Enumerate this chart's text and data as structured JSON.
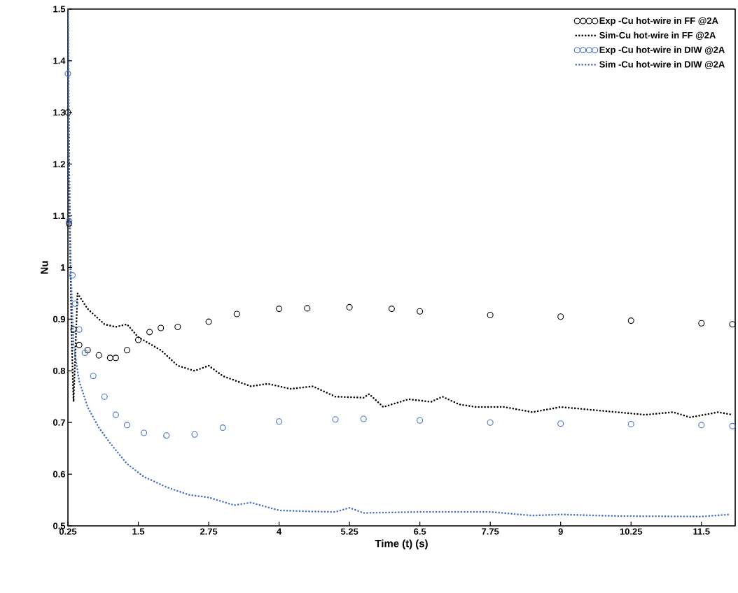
{
  "chart_data": {
    "type": "line",
    "xlabel": "Time (t) (s)",
    "ylabel": "Nu",
    "xlim": [
      0.25,
      12.1
    ],
    "ylim": [
      0.5,
      1.5
    ],
    "xticks": [
      0.25,
      1.5,
      2.75,
      4,
      5.25,
      6.5,
      7.75,
      9,
      10.25,
      11.5
    ],
    "yticks": [
      0.5,
      0.6,
      0.7,
      0.8,
      0.9,
      1,
      1.1,
      1.2,
      1.3,
      1.4,
      1.5
    ],
    "grid": false,
    "legend": "top right",
    "series": [
      {
        "name": "Exp -Cu hot-wire in FF @2A",
        "type": "scatter",
        "marker": "circle",
        "color": "#000000",
        "x": [
          0.25,
          0.27,
          0.35,
          0.45,
          0.6,
          0.8,
          1.0,
          1.1,
          1.3,
          1.5,
          1.7,
          1.9,
          2.2,
          2.75,
          3.25,
          4,
          4.5,
          5.25,
          6,
          6.5,
          7.75,
          9,
          10.25,
          11.5,
          12.05
        ],
        "values": [
          1.3,
          1.085,
          0.88,
          0.85,
          0.84,
          0.83,
          0.825,
          0.825,
          0.84,
          0.86,
          0.875,
          0.883,
          0.885,
          0.895,
          0.91,
          0.92,
          0.921,
          0.923,
          0.92,
          0.915,
          0.908,
          0.905,
          0.897,
          0.892,
          0.89
        ]
      },
      {
        "name": "Sim-Cu hot-wire in FF @2A",
        "line_style": "dotted",
        "color": "#000000",
        "x": [
          0.25,
          0.28,
          0.32,
          0.35,
          0.42,
          0.6,
          0.9,
          1.1,
          1.3,
          1.5,
          1.9,
          2.2,
          2.5,
          2.75,
          3.0,
          3.5,
          3.8,
          4.2,
          4.6,
          5.0,
          5.5,
          5.6,
          5.85,
          6.3,
          6.7,
          6.9,
          7.2,
          7.5,
          8,
          8.5,
          9,
          9.5,
          10,
          10.5,
          11,
          11.3,
          11.8,
          12.05
        ],
        "values": [
          1.5,
          1.1,
          0.85,
          0.74,
          0.95,
          0.92,
          0.89,
          0.885,
          0.89,
          0.865,
          0.84,
          0.81,
          0.8,
          0.81,
          0.79,
          0.77,
          0.775,
          0.765,
          0.77,
          0.75,
          0.748,
          0.755,
          0.73,
          0.745,
          0.74,
          0.75,
          0.735,
          0.73,
          0.73,
          0.72,
          0.73,
          0.725,
          0.72,
          0.715,
          0.72,
          0.71,
          0.72,
          0.715
        ]
      },
      {
        "name": "Exp -Cu hot-wire in DIW @2A",
        "type": "scatter",
        "marker": "circle",
        "color": "#4472c4",
        "x": [
          0.25,
          0.27,
          0.33,
          0.38,
          0.45,
          0.55,
          0.7,
          0.9,
          1.1,
          1.3,
          1.6,
          2.0,
          2.5,
          3.0,
          4,
          5,
          5.5,
          6.5,
          7.75,
          9,
          10.25,
          11.5,
          12.05
        ],
        "values": [
          1.375,
          1.09,
          0.985,
          0.93,
          0.88,
          0.835,
          0.79,
          0.75,
          0.715,
          0.695,
          0.68,
          0.675,
          0.677,
          0.69,
          0.702,
          0.706,
          0.707,
          0.704,
          0.7,
          0.698,
          0.697,
          0.695,
          0.693
        ]
      },
      {
        "name": "Sim -Cu hot-wire in DIW @2A",
        "line_style": "dotted",
        "color": "#4472c4",
        "x": [
          0.25,
          0.27,
          0.3,
          0.35,
          0.45,
          0.6,
          0.8,
          1.0,
          1.3,
          1.6,
          2.0,
          2.4,
          2.75,
          3.2,
          3.5,
          4,
          4.5,
          5,
          5.25,
          5.5,
          6.5,
          7.75,
          8.5,
          9,
          10,
          11.5,
          12
        ],
        "values": [
          1.5,
          1.2,
          1.0,
          0.85,
          0.78,
          0.73,
          0.69,
          0.66,
          0.62,
          0.595,
          0.575,
          0.56,
          0.555,
          0.54,
          0.545,
          0.53,
          0.528,
          0.527,
          0.535,
          0.525,
          0.527,
          0.527,
          0.52,
          0.522,
          0.519,
          0.518,
          0.522
        ]
      }
    ]
  }
}
